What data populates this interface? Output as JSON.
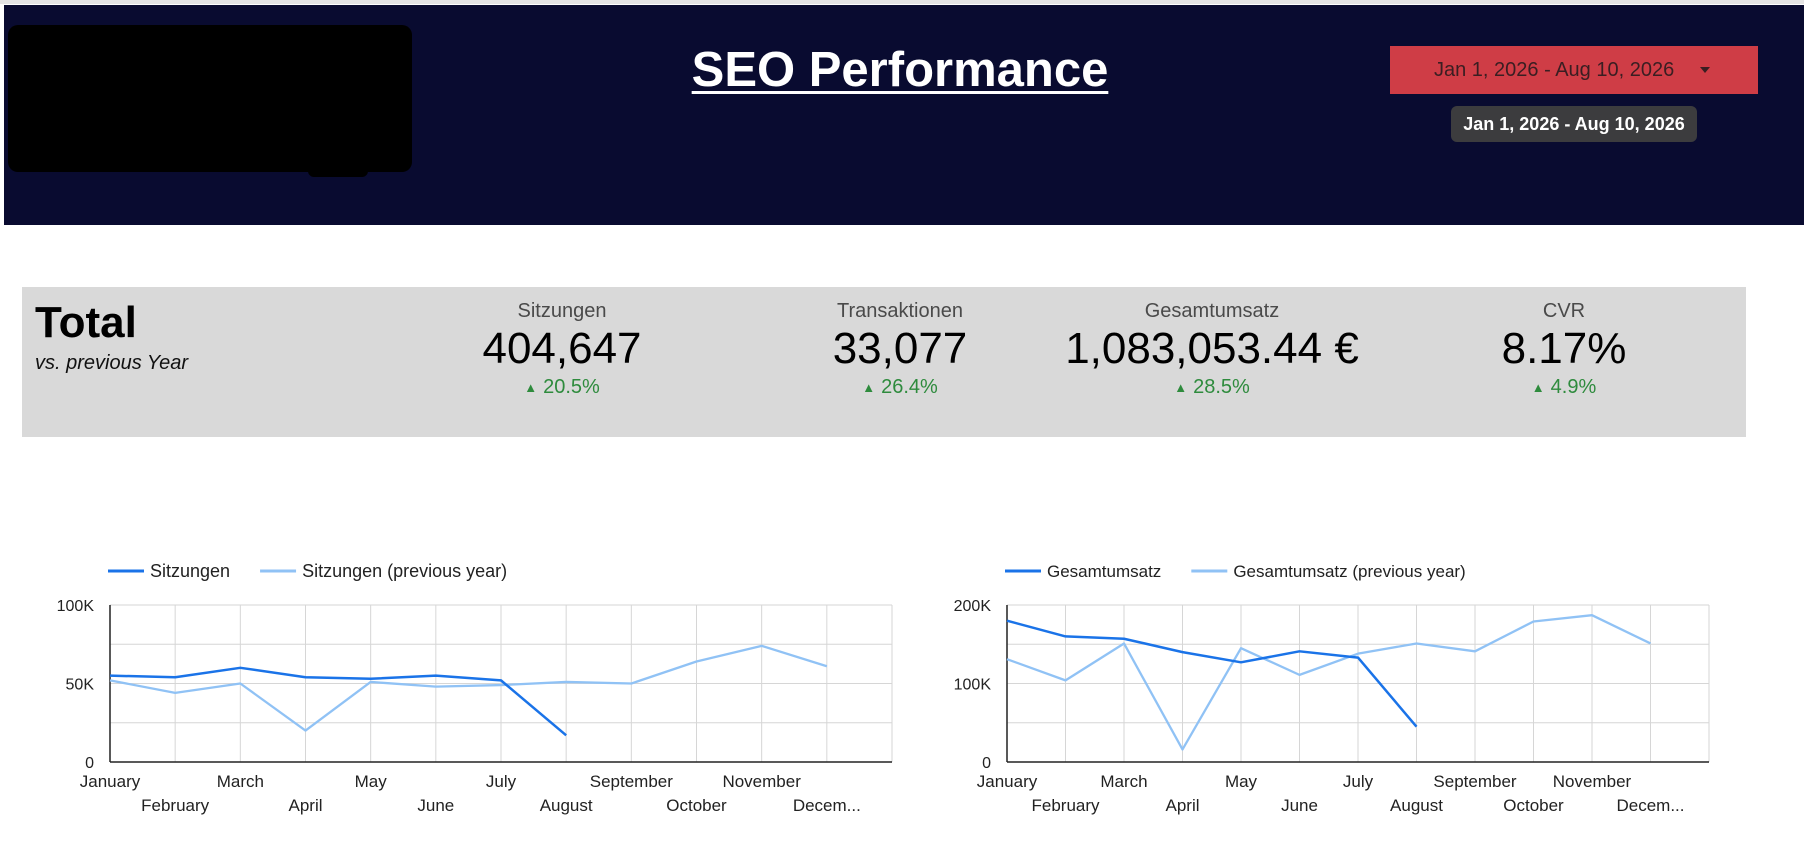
{
  "header": {
    "title": "SEO Performance",
    "date_range": "Jan 1, 2026 - Aug 10, 2026",
    "tooltip": "Jan 1, 2026 - Aug 10, 2026"
  },
  "kpis": {
    "heading": "Total",
    "subheading": "vs. previous Year",
    "items": [
      {
        "label": "Sitzungen",
        "value": "404,647",
        "change": "20.5%",
        "trend": "up"
      },
      {
        "label": "Transaktionen",
        "value": "33,077",
        "change": "26.4%",
        "trend": "up"
      },
      {
        "label": "Gesamtumsatz",
        "value": "1,083,053.44 €",
        "change": "28.5%",
        "trend": "up"
      },
      {
        "label": "CVR",
        "value": "8.17%",
        "change": "4.9%",
        "trend": "up"
      }
    ]
  },
  "colors": {
    "header_bg": "#090b30",
    "accent": "#cf3d46",
    "current": "#1a73e8",
    "previous": "#90c2f5",
    "positive": "#2e8b3d"
  },
  "chart_data": [
    {
      "type": "line",
      "x": [
        "January",
        "February",
        "March",
        "April",
        "May",
        "June",
        "July",
        "August",
        "September",
        "October",
        "November",
        "Decem..."
      ],
      "series": [
        {
          "name": "Sitzungen",
          "values": [
            55000,
            54000,
            60000,
            54000,
            53000,
            55000,
            52000,
            17000,
            null,
            null,
            null,
            null
          ]
        },
        {
          "name": "Sitzungen (previous year)",
          "values": [
            52000,
            44000,
            50000,
            20000,
            51000,
            48000,
            49000,
            51000,
            50000,
            64000,
            74000,
            61000
          ]
        }
      ],
      "ylim": [
        0,
        100000
      ],
      "yticks": [
        "0",
        "50K",
        "100K"
      ],
      "legend": "top-left",
      "grid": true
    },
    {
      "type": "line",
      "x": [
        "January",
        "February",
        "March",
        "April",
        "May",
        "June",
        "July",
        "August",
        "September",
        "October",
        "November",
        "Decem..."
      ],
      "series": [
        {
          "name": "Gesamtumsatz",
          "values": [
            180000,
            160000,
            157000,
            140000,
            127000,
            141000,
            133000,
            45000,
            null,
            null,
            null,
            null
          ]
        },
        {
          "name": "Gesamtumsatz (previous year)",
          "values": [
            131000,
            104000,
            151000,
            16000,
            145000,
            111000,
            138000,
            151000,
            141000,
            179000,
            187000,
            151000
          ]
        }
      ],
      "ylim": [
        0,
        200000
      ],
      "yticks": [
        "0",
        "100K",
        "200K"
      ],
      "legend": "top-left",
      "grid": true
    }
  ]
}
